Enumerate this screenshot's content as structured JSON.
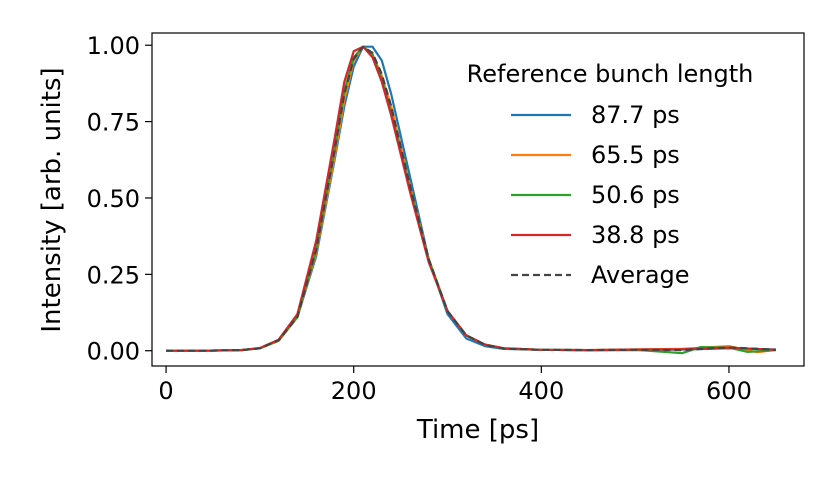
{
  "chart_data": {
    "type": "line",
    "title": "",
    "xlabel": "Time [ps]",
    "ylabel": "Intensity [arb. units]",
    "xlim": [
      -15,
      680
    ],
    "ylim": [
      -0.05,
      1.04
    ],
    "xticks": [
      0,
      200,
      400,
      600
    ],
    "xtick_labels": [
      "0",
      "200",
      "400",
      "600"
    ],
    "yticks": [
      0,
      0.25,
      0.5,
      0.75,
      1.0
    ],
    "ytick_labels": [
      "0.00",
      "0.25",
      "0.50",
      "0.75",
      "1.00"
    ],
    "grid": false,
    "legend_title": "Reference bunch length",
    "legend_position": "upper-right",
    "series": [
      {
        "name": "87.7 ps",
        "color": "#1f77b4",
        "style": "solid",
        "x": [
          0,
          40,
          80,
          100,
          120,
          140,
          160,
          180,
          190,
          200,
          210,
          220,
          230,
          240,
          260,
          280,
          300,
          320,
          340,
          360,
          400,
          450,
          500,
          550,
          600,
          650
        ],
        "y": [
          0,
          0,
          0.002,
          0.008,
          0.035,
          0.11,
          0.31,
          0.63,
          0.8,
          0.93,
          0.995,
          0.995,
          0.95,
          0.84,
          0.57,
          0.3,
          0.12,
          0.04,
          0.015,
          0.006,
          0.003,
          0.002,
          0.002,
          0.004,
          0.008,
          0.004
        ]
      },
      {
        "name": "65.5 ps",
        "color": "#ff7f0e",
        "style": "solid",
        "x": [
          0,
          40,
          80,
          100,
          120,
          140,
          160,
          180,
          190,
          200,
          210,
          220,
          230,
          240,
          260,
          280,
          300,
          320,
          340,
          360,
          400,
          450,
          500,
          550,
          600,
          630,
          650
        ],
        "y": [
          0,
          0,
          0.002,
          0.008,
          0.032,
          0.11,
          0.32,
          0.64,
          0.82,
          0.95,
          0.995,
          0.97,
          0.9,
          0.8,
          0.54,
          0.3,
          0.13,
          0.05,
          0.02,
          0.008,
          0.003,
          0.002,
          0.004,
          0.006,
          0.015,
          -0.005,
          0.003
        ]
      },
      {
        "name": "50.6 ps",
        "color": "#2ca02c",
        "style": "solid",
        "x": [
          0,
          40,
          80,
          100,
          120,
          140,
          160,
          180,
          190,
          200,
          210,
          220,
          230,
          240,
          260,
          280,
          300,
          320,
          340,
          360,
          400,
          450,
          500,
          550,
          570,
          600,
          620,
          650
        ],
        "y": [
          0,
          0,
          0.002,
          0.008,
          0.033,
          0.11,
          0.33,
          0.66,
          0.85,
          0.96,
          0.995,
          0.97,
          0.89,
          0.78,
          0.53,
          0.3,
          0.13,
          0.05,
          0.02,
          0.008,
          0.003,
          0.002,
          0.003,
          -0.008,
          0.012,
          0.01,
          -0.004,
          0.002
        ]
      },
      {
        "name": "38.8 ps",
        "color": "#d62728",
        "style": "solid",
        "x": [
          0,
          40,
          80,
          100,
          120,
          140,
          160,
          180,
          190,
          200,
          210,
          220,
          230,
          240,
          260,
          280,
          300,
          320,
          340,
          360,
          400,
          450,
          500,
          550,
          600,
          650
        ],
        "y": [
          0,
          0,
          0.002,
          0.009,
          0.036,
          0.12,
          0.36,
          0.7,
          0.88,
          0.98,
          0.995,
          0.96,
          0.88,
          0.77,
          0.52,
          0.29,
          0.13,
          0.05,
          0.02,
          0.008,
          0.003,
          0.002,
          0.004,
          0.005,
          0.01,
          0.003
        ]
      },
      {
        "name": "Average",
        "color": "#444444",
        "style": "dashed",
        "x": [
          0,
          40,
          80,
          100,
          120,
          140,
          160,
          180,
          190,
          200,
          210,
          220,
          230,
          240,
          260,
          280,
          300,
          320,
          340,
          360,
          400,
          450,
          500,
          550,
          600,
          650
        ],
        "y": [
          0,
          0,
          0.002,
          0.008,
          0.034,
          0.11,
          0.33,
          0.66,
          0.84,
          0.955,
          0.995,
          0.975,
          0.905,
          0.8,
          0.54,
          0.3,
          0.13,
          0.05,
          0.019,
          0.007,
          0.003,
          0.002,
          0.003,
          0.002,
          0.011,
          0.003
        ]
      }
    ]
  }
}
